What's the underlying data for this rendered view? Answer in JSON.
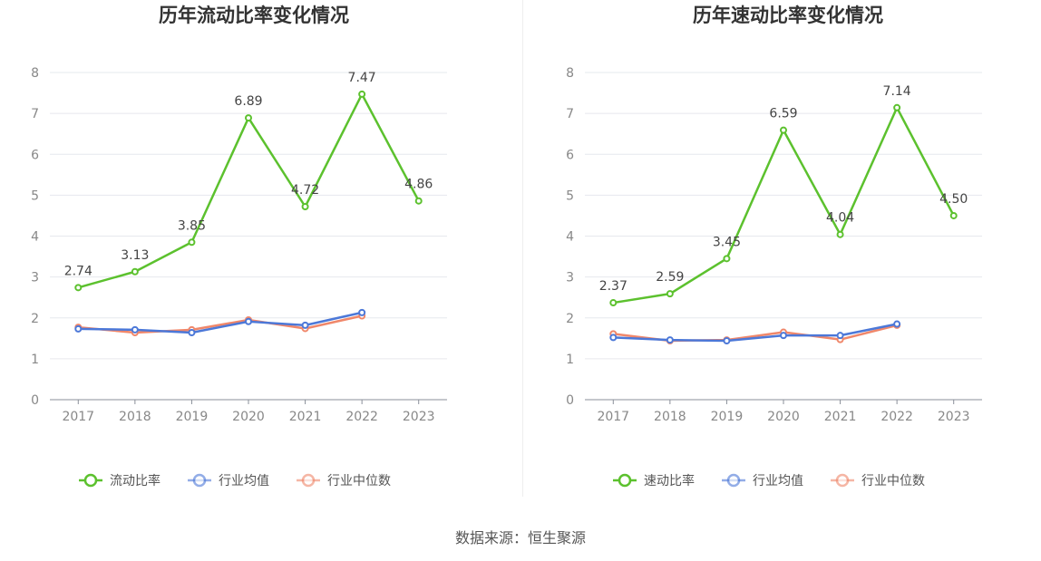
{
  "chart_data": [
    {
      "type": "line",
      "title": "历年流动比率变化情况",
      "categories": [
        "2017",
        "2018",
        "2019",
        "2020",
        "2021",
        "2022",
        "2023"
      ],
      "ylim": [
        0,
        8
      ],
      "yticks": [
        0,
        1,
        2,
        3,
        4,
        5,
        6,
        7,
        8
      ],
      "grid": true,
      "legend_position": "bottom",
      "series": [
        {
          "name": "流动比率",
          "color": "#5cc12e",
          "values": [
            2.74,
            3.13,
            3.85,
            6.89,
            4.72,
            7.47,
            4.86
          ],
          "labels": [
            "2.74",
            "3.13",
            "3.85",
            "6.89",
            "4.72",
            "7.47",
            "4.86"
          ]
        },
        {
          "name": "行业均值",
          "color": "#4c78d8",
          "values": [
            1.73,
            1.71,
            1.64,
            1.91,
            1.82,
            2.13,
            null
          ]
        },
        {
          "name": "行业中位数",
          "color": "#f0876a",
          "values": [
            1.77,
            1.64,
            1.71,
            1.95,
            1.74,
            2.05,
            null
          ]
        }
      ]
    },
    {
      "type": "line",
      "title": "历年速动比率变化情况",
      "categories": [
        "2017",
        "2018",
        "2019",
        "2020",
        "2021",
        "2022",
        "2023"
      ],
      "ylim": [
        0,
        8
      ],
      "yticks": [
        0,
        1,
        2,
        3,
        4,
        5,
        6,
        7,
        8
      ],
      "grid": true,
      "legend_position": "bottom",
      "series": [
        {
          "name": "速动比率",
          "color": "#5cc12e",
          "values": [
            2.37,
            2.59,
            3.45,
            6.59,
            4.04,
            7.14,
            4.5
          ],
          "labels": [
            "2.37",
            "2.59",
            "3.45",
            "6.59",
            "4.04",
            "7.14",
            "4.50"
          ]
        },
        {
          "name": "行业均值",
          "color": "#4c78d8",
          "values": [
            1.52,
            1.46,
            1.44,
            1.57,
            1.57,
            1.85,
            null
          ]
        },
        {
          "name": "行业中位数",
          "color": "#f0876a",
          "values": [
            1.61,
            1.44,
            1.46,
            1.65,
            1.47,
            1.82,
            null
          ]
        }
      ]
    }
  ],
  "footer": {
    "source": "数据来源：恒生聚源"
  }
}
